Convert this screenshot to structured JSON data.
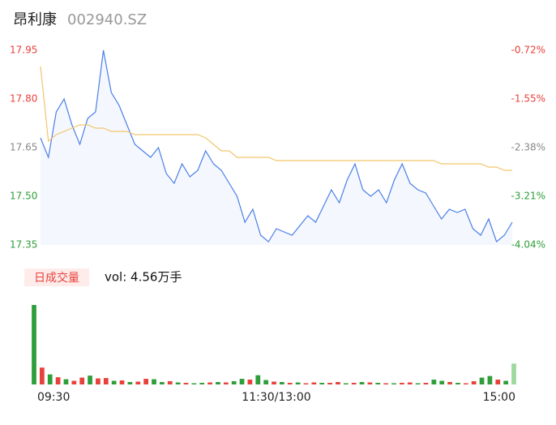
{
  "header": {
    "name": "昂利康",
    "code": "002940.SZ"
  },
  "chart_data": [
    {
      "type": "line",
      "ylim": [
        17.35,
        17.95
      ],
      "yticks": [
        17.35,
        17.5,
        17.65,
        17.8,
        17.95
      ],
      "ytick_labels": [
        "17.35",
        "17.50",
        "17.65",
        "17.80",
        "17.95"
      ],
      "ytick_colors": [
        "#2e9e3a",
        "#2e9e3a",
        "#888888",
        "#e8413b",
        "#e8413b"
      ],
      "y2lim": [
        -4.04,
        -0.72
      ],
      "y2ticks": [
        {
          "value": -4.04,
          "label": "-4.04%"
        },
        {
          "value": -3.21,
          "label": "-3.21%"
        },
        {
          "value": -2.38,
          "label": "-2.38%"
        },
        {
          "value": -1.55,
          "label": "-1.55%"
        },
        {
          "value": -0.72,
          "label": "-0.72%"
        }
      ],
      "xticks": [
        "09:30",
        "11:30/13:00",
        "15:00"
      ],
      "series": [
        {
          "color": "#4a7fe8",
          "fill": "#f4f7fd",
          "values": [
            17.68,
            17.62,
            17.76,
            17.8,
            17.72,
            17.66,
            17.74,
            17.76,
            17.95,
            17.82,
            17.78,
            17.72,
            17.66,
            17.64,
            17.62,
            17.65,
            17.57,
            17.54,
            17.6,
            17.56,
            17.58,
            17.64,
            17.6,
            17.58,
            17.54,
            17.5,
            17.42,
            17.46,
            17.38,
            17.36,
            17.4,
            17.39,
            17.38,
            17.41,
            17.44,
            17.42,
            17.47,
            17.52,
            17.48,
            17.55,
            17.6,
            17.52,
            17.5,
            17.52,
            17.48,
            17.55,
            17.6,
            17.54,
            17.52,
            17.51,
            17.47,
            17.43,
            17.46,
            17.45,
            17.46,
            17.4,
            17.38,
            17.43,
            17.36,
            17.38,
            17.42
          ]
        },
        {
          "color": "#f2c56b",
          "values": [
            17.9,
            17.67,
            17.69,
            17.7,
            17.71,
            17.72,
            17.72,
            17.71,
            17.71,
            17.7,
            17.7,
            17.7,
            17.69,
            17.69,
            17.69,
            17.69,
            17.69,
            17.69,
            17.69,
            17.69,
            17.69,
            17.68,
            17.66,
            17.64,
            17.64,
            17.62,
            17.62,
            17.62,
            17.62,
            17.62,
            17.61,
            17.61,
            17.61,
            17.61,
            17.61,
            17.61,
            17.61,
            17.61,
            17.61,
            17.61,
            17.61,
            17.61,
            17.61,
            17.61,
            17.61,
            17.61,
            17.61,
            17.61,
            17.61,
            17.61,
            17.61,
            17.6,
            17.6,
            17.6,
            17.6,
            17.6,
            17.6,
            17.59,
            17.59,
            17.58,
            17.58
          ]
        }
      ]
    },
    {
      "type": "bar",
      "legend_label": "日成交量",
      "annotation": "vol: 4.56万手",
      "ylim": [
        0,
        2000
      ],
      "values": [
        1980,
        420,
        250,
        180,
        130,
        90,
        170,
        220,
        150,
        160,
        90,
        100,
        60,
        70,
        140,
        130,
        60,
        80,
        50,
        40,
        30,
        40,
        50,
        60,
        50,
        80,
        140,
        120,
        230,
        110,
        70,
        60,
        40,
        50,
        30,
        50,
        40,
        40,
        60,
        30,
        40,
        60,
        50,
        40,
        30,
        30,
        40,
        50,
        30,
        40,
        120,
        90,
        60,
        40,
        30,
        80,
        170,
        210,
        120,
        90,
        520
      ],
      "colors": [
        "#2e9e3a",
        "#e8413b",
        "#2e9e3a",
        "#e8413b",
        "#2e9e3a",
        "#e8413b",
        "#e8413b",
        "#2e9e3a",
        "#e8413b",
        "#e8413b",
        "#2e9e3a",
        "#e8413b",
        "#2e9e3a",
        "#e8413b",
        "#e8413b",
        "#2e9e3a",
        "#2e9e3a",
        "#e8413b",
        "#2e9e3a",
        "#e8413b",
        "#2e9e3a",
        "#2e9e3a",
        "#e8413b",
        "#2e9e3a",
        "#e8413b",
        "#2e9e3a",
        "#2e9e3a",
        "#e8413b",
        "#2e9e3a",
        "#2e9e3a",
        "#e8413b",
        "#2e9e3a",
        "#e8413b",
        "#2e9e3a",
        "#e8413b",
        "#e8413b",
        "#2e9e3a",
        "#e8413b",
        "#e8413b",
        "#2e9e3a",
        "#e8413b",
        "#2e9e3a",
        "#e8413b",
        "#2e9e3a",
        "#e8413b",
        "#2e9e3a",
        "#e8413b",
        "#e8413b",
        "#2e9e3a",
        "#e8413b",
        "#2e9e3a",
        "#2e9e3a",
        "#e8413b",
        "#2e9e3a",
        "#e8413b",
        "#e8413b",
        "#2e9e3a",
        "#2e9e3a",
        "#e8413b",
        "#2e9e3a",
        "#9ed89e"
      ]
    }
  ]
}
